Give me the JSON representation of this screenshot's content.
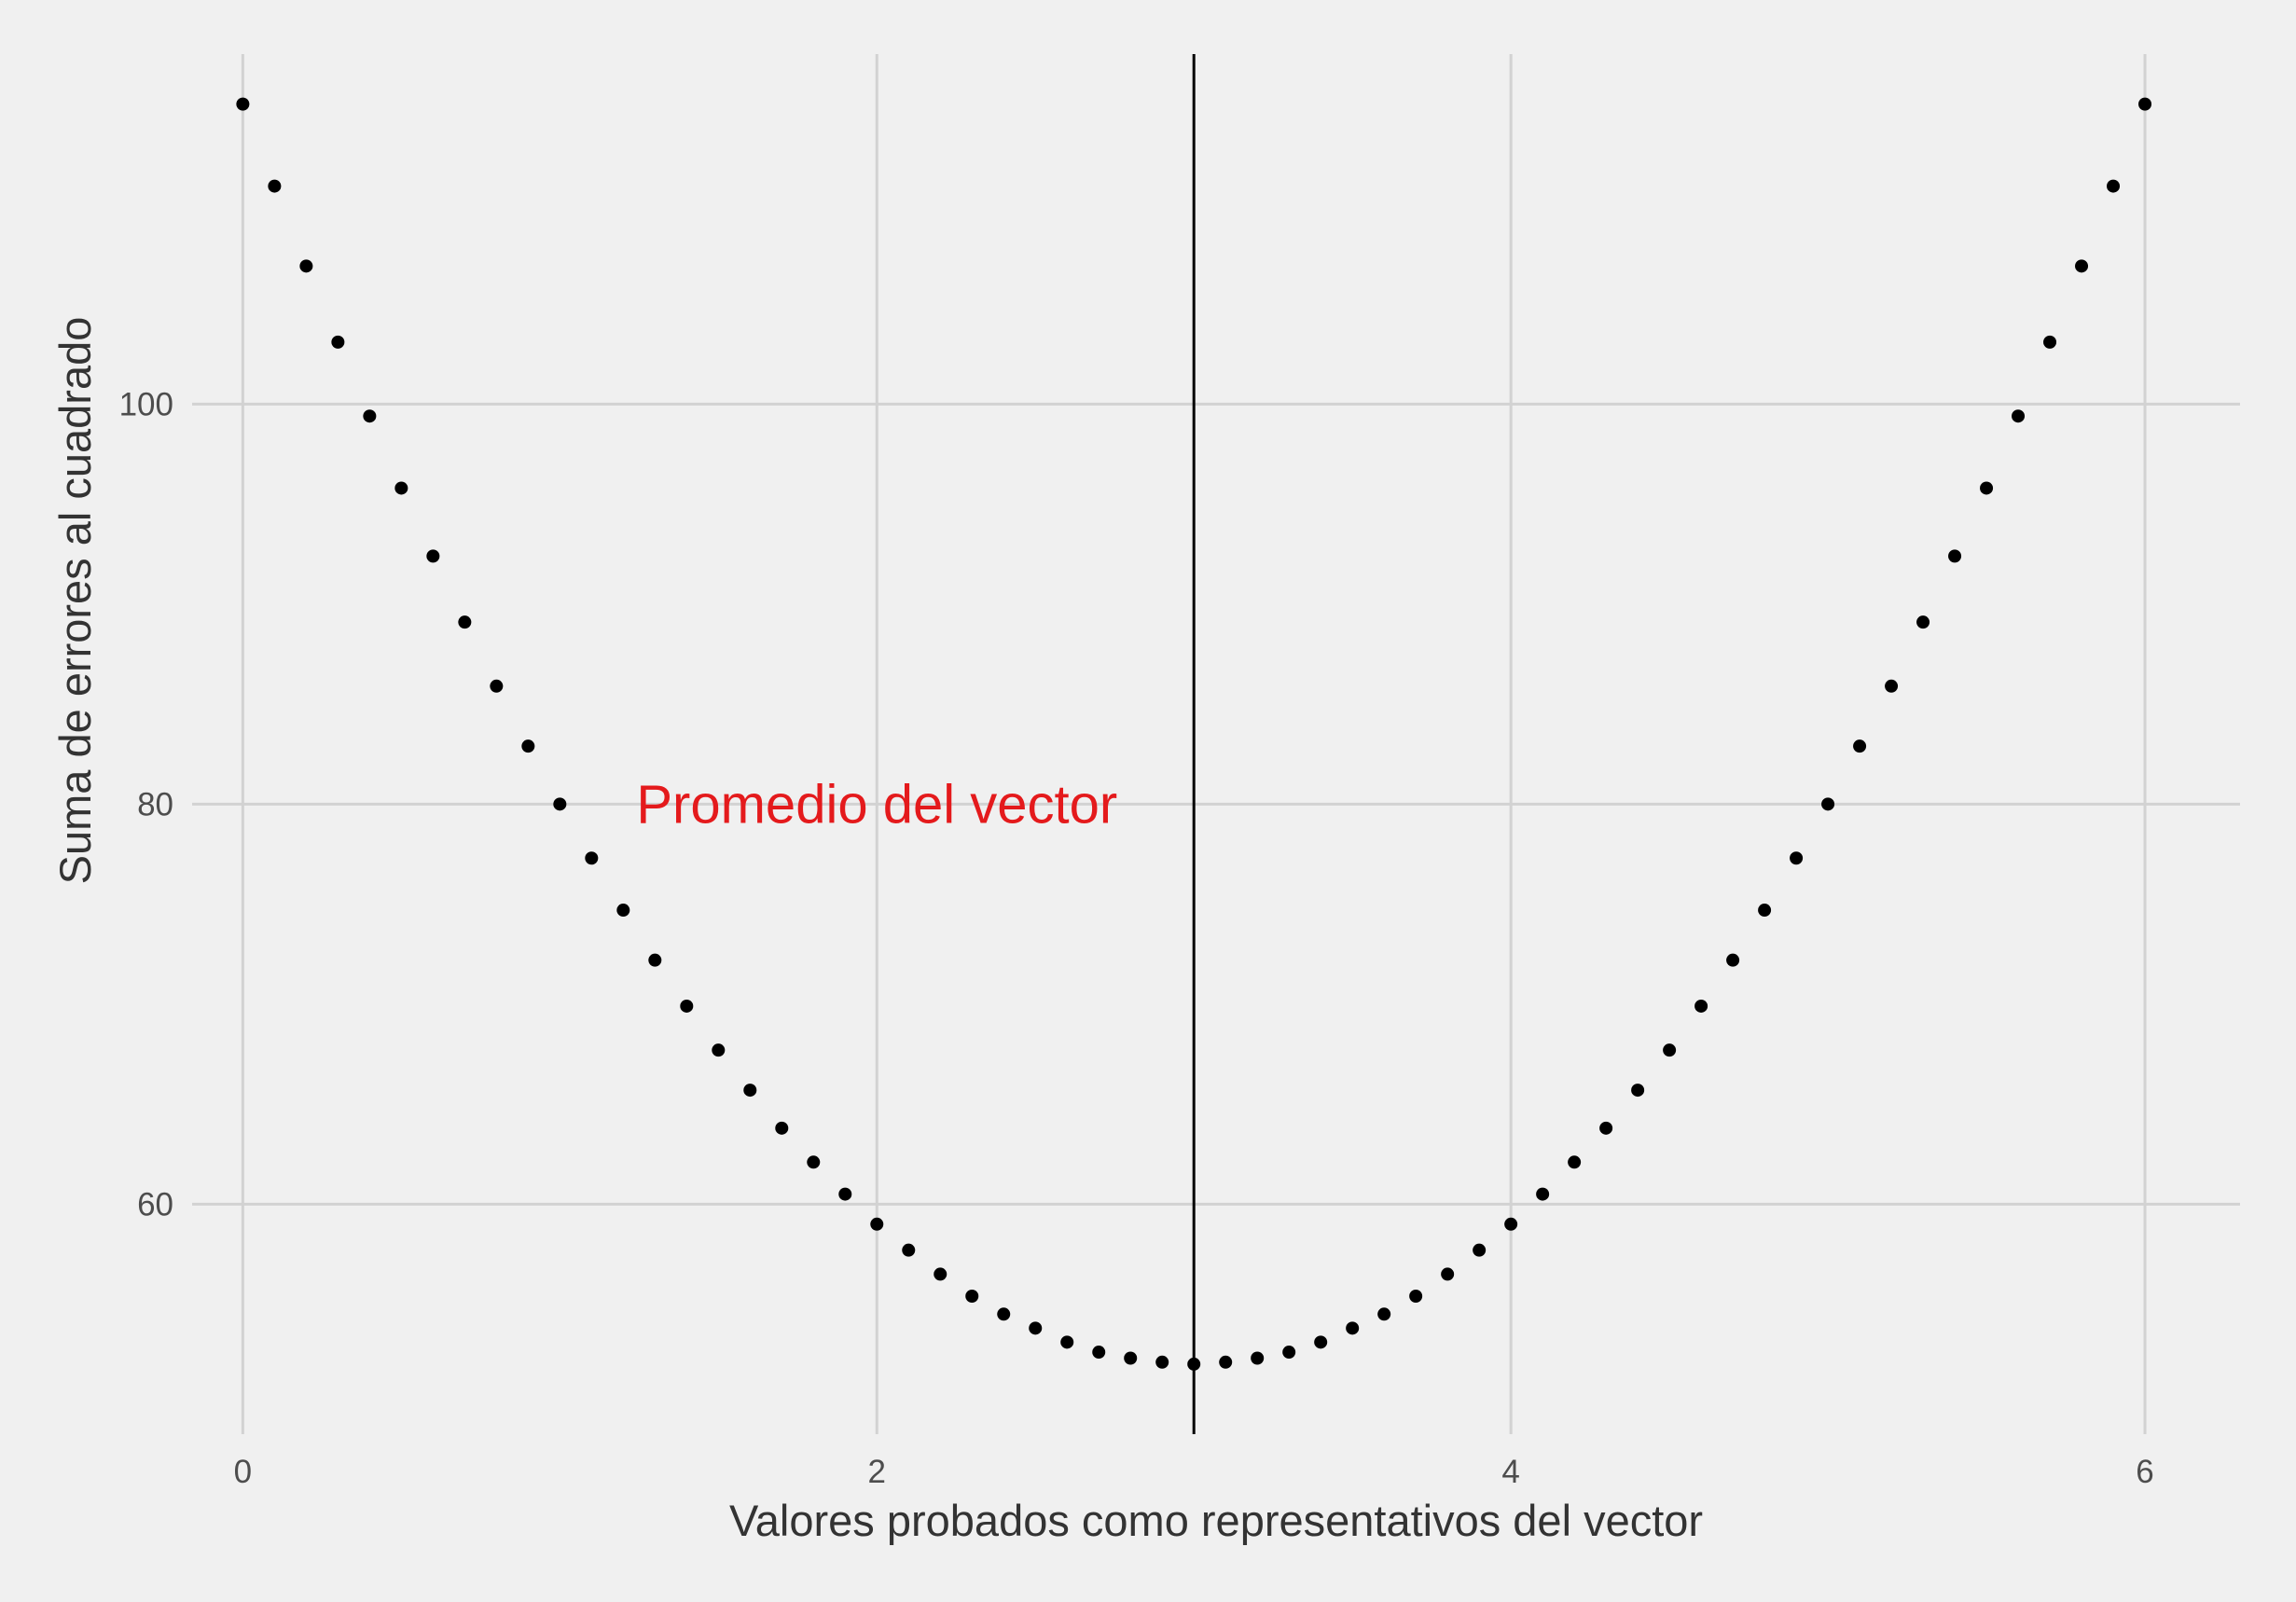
{
  "chart_data": {
    "type": "scatter",
    "title": "",
    "xlabel": "Valores probados como representativos del vector",
    "ylabel": "Suma de errores al cuadrado",
    "xlim": [
      -0.16,
      6.3
    ],
    "ylim": [
      48.5,
      117.5
    ],
    "x_ticks": [
      0,
      2,
      4,
      6
    ],
    "y_ticks": [
      60,
      80,
      100
    ],
    "grid": true,
    "legend": "none",
    "point_color": "#000000",
    "series": [
      {
        "points": [
          {
            "x": 0.0,
            "y": 115.0
          },
          {
            "x": 0.1,
            "y": 110.9
          },
          {
            "x": 0.2,
            "y": 106.9
          },
          {
            "x": 0.3,
            "y": 103.1
          },
          {
            "x": 0.4,
            "y": 99.4
          },
          {
            "x": 0.5,
            "y": 95.8
          },
          {
            "x": 0.6,
            "y": 92.4
          },
          {
            "x": 0.7,
            "y": 89.1
          },
          {
            "x": 0.8,
            "y": 85.9
          },
          {
            "x": 0.9,
            "y": 82.9
          },
          {
            "x": 1.0,
            "y": 80.0
          },
          {
            "x": 1.1,
            "y": 77.3
          },
          {
            "x": 1.2,
            "y": 74.7
          },
          {
            "x": 1.3,
            "y": 72.2
          },
          {
            "x": 1.4,
            "y": 69.9
          },
          {
            "x": 1.5,
            "y": 67.7
          },
          {
            "x": 1.6,
            "y": 65.7
          },
          {
            "x": 1.7,
            "y": 63.8
          },
          {
            "x": 1.8,
            "y": 62.1
          },
          {
            "x": 1.9,
            "y": 60.5
          },
          {
            "x": 2.0,
            "y": 59.0
          },
          {
            "x": 2.1,
            "y": 57.7
          },
          {
            "x": 2.2,
            "y": 56.5
          },
          {
            "x": 2.3,
            "y": 55.4
          },
          {
            "x": 2.4,
            "y": 54.5
          },
          {
            "x": 2.5,
            "y": 53.8
          },
          {
            "x": 2.6,
            "y": 53.1
          },
          {
            "x": 2.7,
            "y": 52.6
          },
          {
            "x": 2.8,
            "y": 52.3
          },
          {
            "x": 2.9,
            "y": 52.1
          },
          {
            "x": 3.0,
            "y": 52.0
          },
          {
            "x": 3.1,
            "y": 52.1
          },
          {
            "x": 3.2,
            "y": 52.3
          },
          {
            "x": 3.3,
            "y": 52.6
          },
          {
            "x": 3.4,
            "y": 53.1
          },
          {
            "x": 3.5,
            "y": 53.8
          },
          {
            "x": 3.6,
            "y": 54.5
          },
          {
            "x": 3.7,
            "y": 55.4
          },
          {
            "x": 3.8,
            "y": 56.5
          },
          {
            "x": 3.9,
            "y": 57.7
          },
          {
            "x": 4.0,
            "y": 59.0
          },
          {
            "x": 4.1,
            "y": 60.5
          },
          {
            "x": 4.2,
            "y": 62.1
          },
          {
            "x": 4.3,
            "y": 63.8
          },
          {
            "x": 4.4,
            "y": 65.7
          },
          {
            "x": 4.5,
            "y": 67.7
          },
          {
            "x": 4.6,
            "y": 69.9
          },
          {
            "x": 4.7,
            "y": 72.2
          },
          {
            "x": 4.8,
            "y": 74.7
          },
          {
            "x": 4.9,
            "y": 77.3
          },
          {
            "x": 5.0,
            "y": 80.0
          },
          {
            "x": 5.1,
            "y": 82.9
          },
          {
            "x": 5.2,
            "y": 85.9
          },
          {
            "x": 5.3,
            "y": 89.1
          },
          {
            "x": 5.4,
            "y": 92.4
          },
          {
            "x": 5.5,
            "y": 95.8
          },
          {
            "x": 5.6,
            "y": 99.4
          },
          {
            "x": 5.7,
            "y": 103.1
          },
          {
            "x": 5.8,
            "y": 106.9
          },
          {
            "x": 5.9,
            "y": 110.9
          },
          {
            "x": 6.0,
            "y": 115.0
          }
        ]
      }
    ],
    "vline": {
      "x": 3.0,
      "color": "#000000"
    },
    "annotation": {
      "text": "Promedio del vector",
      "x": 2.0,
      "y": 80.0,
      "color": "#e41a1c"
    }
  }
}
